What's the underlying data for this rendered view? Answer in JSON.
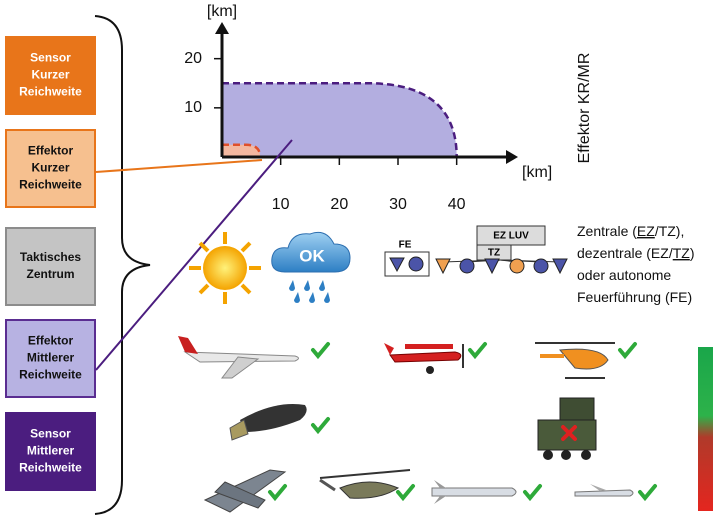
{
  "left_boxes": [
    {
      "lines": [
        "Sensor",
        "Kurzer",
        "Reichweite"
      ],
      "fill": "#e8751a",
      "border": "#e8751a",
      "text_color": "#ffffff"
    },
    {
      "lines": [
        "Effektor",
        "Kurzer",
        "Reichweite"
      ],
      "fill": "#f6c08f",
      "border": "#e8751a",
      "text_color": "#111111"
    },
    {
      "lines": [
        "Taktisches",
        "Zentrum"
      ],
      "fill": "#c4c4c4",
      "border": "#8c8c8c",
      "text_color": "#111111"
    },
    {
      "lines": [
        "Effektor",
        "Mittlerer",
        "Reichweite"
      ],
      "fill": "#b7b2e2",
      "border": "#5a2d91",
      "text_color": "#111111"
    },
    {
      "lines": [
        "Sensor",
        "Mittlerer",
        "Reichweite"
      ],
      "fill": "#4b1d7f",
      "border": "#4b1d7f",
      "text_color": "#ffffff"
    }
  ],
  "range_chart": {
    "y_unit": "[km]",
    "x_unit": "[km]",
    "side_label": "Effektor KR/MR",
    "xlim": [
      0,
      45
    ],
    "ylim": [
      0,
      24
    ],
    "xticks": [
      10,
      20,
      30,
      40
    ],
    "yticks": [
      10,
      20
    ],
    "medium_range": {
      "range": 40,
      "altitude": 15,
      "fill": "#b3aee0",
      "stroke": "#4b1d7f"
    },
    "short_range": {
      "range": 6.5,
      "altitude": 2.5,
      "fill": "#f3b8a0",
      "stroke": "#e0502a"
    }
  },
  "weather": {
    "ok_label": "OK"
  },
  "network": {
    "fe_label": "FE",
    "ez_luv_label": "EZ LUV",
    "tz_label": "TZ"
  },
  "network_note": [
    [
      {
        "text": "Zentrale (",
        "underline": false
      },
      {
        "text": "EZ",
        "underline": true
      },
      {
        "text": "/TZ),",
        "underline": false
      }
    ],
    [
      {
        "text": "dezentrale (EZ/",
        "underline": false
      },
      {
        "text": "TZ",
        "underline": true
      },
      {
        "text": ")",
        "underline": false
      }
    ],
    [
      {
        "text": "oder autonome",
        "underline": false
      }
    ],
    [
      {
        "text": "Feuerführung (FE)",
        "underline": false
      }
    ]
  ]
}
